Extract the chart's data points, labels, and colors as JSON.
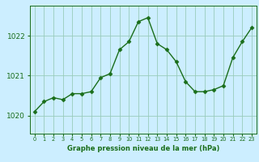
{
  "x": [
    0,
    1,
    2,
    3,
    4,
    5,
    6,
    7,
    8,
    9,
    10,
    11,
    12,
    13,
    14,
    15,
    16,
    17,
    18,
    19,
    20,
    21,
    22,
    23
  ],
  "y": [
    1020.1,
    1020.35,
    1020.45,
    1020.4,
    1020.55,
    1020.55,
    1020.6,
    1020.95,
    1021.05,
    1021.65,
    1021.85,
    1022.35,
    1022.45,
    1021.8,
    1021.65,
    1021.35,
    1020.85,
    1020.6,
    1020.6,
    1020.65,
    1020.75,
    1021.45,
    1021.85,
    1022.2
  ],
  "line_color": "#1a6e1a",
  "marker": "D",
  "marker_size": 2.5,
  "bg_color": "#cceeff",
  "grid_color": "#99ccbb",
  "xlabel": "Graphe pression niveau de la mer (hPa)",
  "xlabel_color": "#1a6e1a",
  "tick_color": "#1a6e1a",
  "ylim": [
    1019.55,
    1022.75
  ],
  "yticks": [
    1020,
    1021,
    1022
  ],
  "xticks": [
    0,
    1,
    2,
    3,
    4,
    5,
    6,
    7,
    8,
    9,
    10,
    11,
    12,
    13,
    14,
    15,
    16,
    17,
    18,
    19,
    20,
    21,
    22,
    23
  ]
}
